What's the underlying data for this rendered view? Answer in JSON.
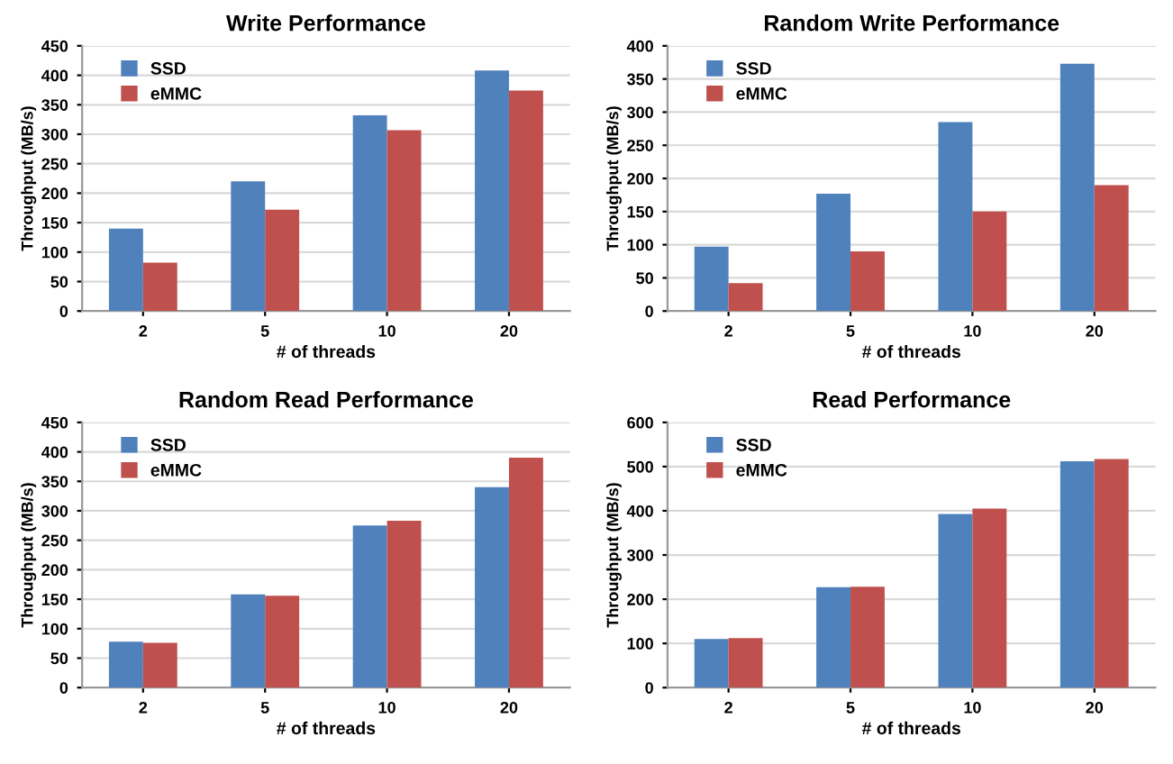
{
  "chart_data": [
    {
      "type": "bar",
      "title": "Write Performance",
      "xlabel": "# of threads",
      "ylabel": "Throughput (MB/s)",
      "categories": [
        "2",
        "5",
        "10",
        "20"
      ],
      "series": [
        {
          "name": "SSD",
          "color": "#4f81bd",
          "values": [
            140,
            220,
            332,
            408
          ]
        },
        {
          "name": "eMMC",
          "color": "#c0504d",
          "values": [
            82,
            172,
            307,
            374
          ]
        }
      ],
      "ylim": [
        0,
        450
      ],
      "yticks": [
        0,
        50,
        100,
        150,
        200,
        250,
        300,
        350,
        400,
        450
      ],
      "grid": "y",
      "legend": "top left"
    },
    {
      "type": "bar",
      "title": "Random Write Performance",
      "xlabel": "# of threads",
      "ylabel": "Throughput (MB/s)",
      "categories": [
        "2",
        "5",
        "10",
        "20"
      ],
      "series": [
        {
          "name": "SSD",
          "color": "#4f81bd",
          "values": [
            97,
            177,
            285,
            373
          ]
        },
        {
          "name": "eMMC",
          "color": "#c0504d",
          "values": [
            42,
            90,
            150,
            190
          ]
        }
      ],
      "ylim": [
        0,
        400
      ],
      "yticks": [
        0,
        50,
        100,
        150,
        200,
        250,
        300,
        350,
        400
      ],
      "grid": "y",
      "legend": "top left"
    },
    {
      "type": "bar",
      "title": "Random Read Performance",
      "xlabel": "# of threads",
      "ylabel": "Throughput (MB/s)",
      "categories": [
        "2",
        "5",
        "10",
        "20"
      ],
      "series": [
        {
          "name": "SSD",
          "color": "#4f81bd",
          "values": [
            78,
            158,
            275,
            340
          ]
        },
        {
          "name": "eMMC",
          "color": "#c0504d",
          "values": [
            76,
            156,
            283,
            390
          ]
        }
      ],
      "ylim": [
        0,
        450
      ],
      "yticks": [
        0,
        50,
        100,
        150,
        200,
        250,
        300,
        350,
        400,
        450
      ],
      "grid": "y",
      "legend": "top left"
    },
    {
      "type": "bar",
      "title": "Read Performance",
      "xlabel": "# of threads",
      "ylabel": "Throughput (MB/s)",
      "categories": [
        "2",
        "5",
        "10",
        "20"
      ],
      "series": [
        {
          "name": "SSD",
          "color": "#4f81bd",
          "values": [
            110,
            227,
            393,
            512
          ]
        },
        {
          "name": "eMMC",
          "color": "#c0504d",
          "values": [
            112,
            228,
            405,
            517
          ]
        }
      ],
      "ylim": [
        0,
        600
      ],
      "yticks": [
        0,
        100,
        200,
        300,
        400,
        500,
        600
      ],
      "grid": "y",
      "legend": "top left"
    }
  ]
}
